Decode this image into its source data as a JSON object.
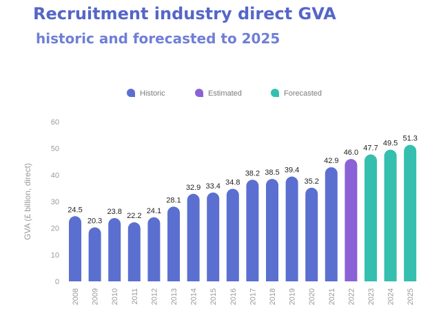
{
  "title": "Recruitment industry direct GVA",
  "subtitle": "historic and forecasted to 2025",
  "chart_data": {
    "type": "bar",
    "categories": [
      "2008",
      "2009",
      "2010",
      "2011",
      "2012",
      "2013",
      "2014",
      "2015",
      "2016",
      "2017",
      "2018",
      "2019",
      "2020",
      "2021",
      "2022",
      "2023",
      "2024",
      "2025"
    ],
    "values": [
      24.5,
      20.3,
      23.8,
      22.2,
      24.1,
      28.1,
      32.9,
      33.4,
      34.8,
      38.2,
      38.5,
      39.4,
      35.2,
      42.9,
      46.0,
      47.7,
      49.5,
      51.3
    ],
    "value_labels": [
      "24.5",
      "20.3",
      "23.8",
      "22.2",
      "24.1",
      "28.1",
      "32.9",
      "33.4",
      "34.8",
      "38.2",
      "38.5",
      "39.4",
      "35.2",
      "42.9",
      "46.0",
      "47.7",
      "49.5",
      "51.3"
    ],
    "groups": [
      "Historic",
      "Historic",
      "Historic",
      "Historic",
      "Historic",
      "Historic",
      "Historic",
      "Historic",
      "Historic",
      "Historic",
      "Historic",
      "Historic",
      "Historic",
      "Historic",
      "Estimated",
      "Forecasted",
      "Forecasted",
      "Forecasted"
    ],
    "legend": [
      {
        "name": "Historic",
        "color": "#5b6fd0"
      },
      {
        "name": "Estimated",
        "color": "#8a62d6"
      },
      {
        "name": "Forecasted",
        "color": "#34bfae"
      }
    ],
    "legend_position": "top-center",
    "ylabel": "GVA (£ billion, direct)",
    "xlabel": "",
    "ylim": [
      0,
      60
    ],
    "yticks": [
      0,
      10,
      20,
      30,
      40,
      50,
      60
    ],
    "grid": false
  }
}
